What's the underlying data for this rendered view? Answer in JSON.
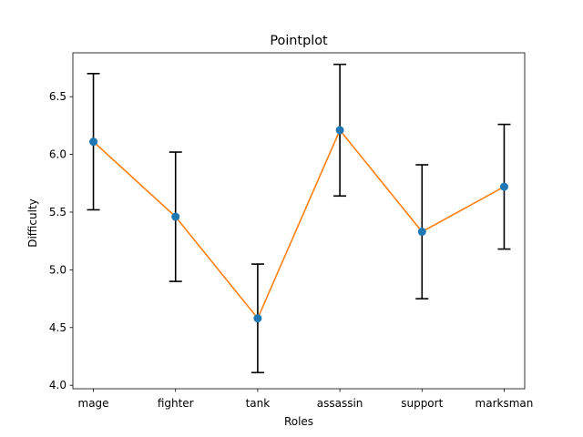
{
  "chart_data": {
    "type": "line",
    "title": "Pointplot",
    "xlabel": "Roles",
    "ylabel": "Difficulty",
    "categories": [
      "mage",
      "fighter",
      "tank",
      "assassin",
      "support",
      "marksman"
    ],
    "values": [
      6.11,
      5.46,
      4.58,
      6.21,
      5.33,
      5.72
    ],
    "error_low": [
      5.52,
      4.9,
      4.11,
      5.64,
      4.75,
      5.18
    ],
    "error_high": [
      6.7,
      6.02,
      5.05,
      6.78,
      5.91,
      6.26
    ],
    "ylim": [
      3.97,
      6.88
    ],
    "yticks": [
      4.0,
      4.5,
      5.0,
      5.5,
      6.0,
      6.5
    ],
    "ytick_labels": [
      "4.0",
      "4.5",
      "5.0",
      "5.5",
      "6.0",
      "6.5"
    ],
    "grid": false,
    "colors": {
      "line": "#ff7f0e",
      "marker": "#1f77b4",
      "errorbar": "#000000",
      "axes": "#000000"
    }
  }
}
